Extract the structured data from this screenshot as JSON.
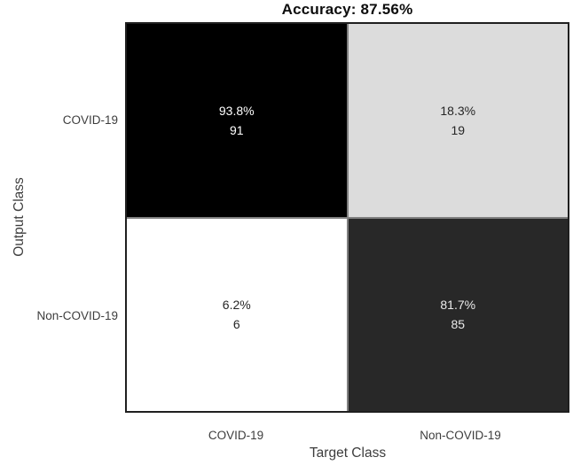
{
  "chart_data": {
    "type": "heatmap",
    "subtype": "confusion-matrix",
    "title": "Accuracy: 87.56%",
    "accuracy_percent": 87.56,
    "xlabel": "Target Class",
    "ylabel": "Output Class",
    "x_categories": [
      "COVID-19",
      "Non-COVID-19"
    ],
    "y_categories": [
      "COVID-19",
      "Non-COVID-19"
    ],
    "cells": [
      {
        "output_class": "COVID-19",
        "target_class": "COVID-19",
        "percent": "93.8%",
        "percent_value": 93.8,
        "count": "91",
        "bg": "#000000",
        "fg": "#ffffff"
      },
      {
        "output_class": "COVID-19",
        "target_class": "Non-COVID-19",
        "percent": "18.3%",
        "percent_value": 18.3,
        "count": "19",
        "bg": "#dcdcdc",
        "fg": "#262626"
      },
      {
        "output_class": "Non-COVID-19",
        "target_class": "COVID-19",
        "percent": "6.2%",
        "percent_value": 6.2,
        "count": "6",
        "bg": "#ffffff",
        "fg": "#262626"
      },
      {
        "output_class": "Non-COVID-19",
        "target_class": "Non-COVID-19",
        "percent": "81.7%",
        "percent_value": 81.7,
        "count": "85",
        "bg": "#282828",
        "fg": "#ebebeb"
      }
    ],
    "layout": {
      "grid": "2x2",
      "gridline_color": "#808080",
      "border_color": "#1f1f1f",
      "background": "#ffffff"
    }
  }
}
